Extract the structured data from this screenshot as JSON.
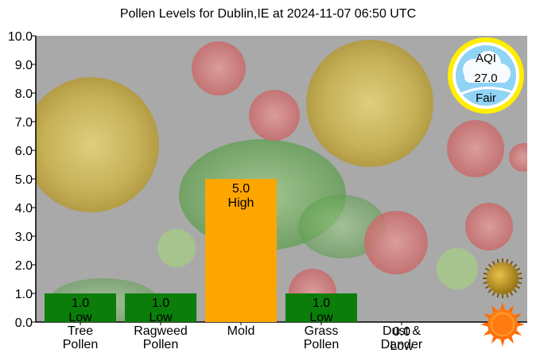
{
  "chart_data": {
    "type": "bar",
    "title": "Pollen Levels for Dublin,IE at 2024-11-07 06:50 UTC",
    "xlabel": "",
    "ylabel": "",
    "ylim": [
      0,
      10
    ],
    "yticks": [
      "0.0",
      "1.0",
      "2.0",
      "3.0",
      "4.0",
      "5.0",
      "6.0",
      "7.0",
      "8.0",
      "9.0",
      "10.0"
    ],
    "grid": false,
    "categories": [
      {
        "line1": "Tree",
        "line2": "Pollen"
      },
      {
        "line1": "Ragweed",
        "line2": "Pollen"
      },
      {
        "line1": "Mold",
        "line2": ""
      },
      {
        "line1": "Grass",
        "line2": "Pollen"
      },
      {
        "line1": "Dust &",
        "line2": "Dander"
      }
    ],
    "values": [
      1.0,
      1.0,
      5.0,
      1.0,
      0.0
    ],
    "value_labels": [
      "1.0",
      "1.0",
      "5.0",
      "1.0",
      "0.0"
    ],
    "level_labels": [
      "Low",
      "Low",
      "High",
      "Low",
      "Low"
    ],
    "bar_colors": [
      "#0a7d0a",
      "#0a7d0a",
      "#ffa500",
      "#0a7d0a",
      "#0a7d0a"
    ]
  },
  "aqi": {
    "label": "AQI",
    "value": "27.0",
    "status": "Fair",
    "ring_color": "#ffee00",
    "fill_color": "#8fd3f5"
  },
  "icons": {
    "pollen": "pollen-grain-icon",
    "sun": "sun-icon"
  }
}
